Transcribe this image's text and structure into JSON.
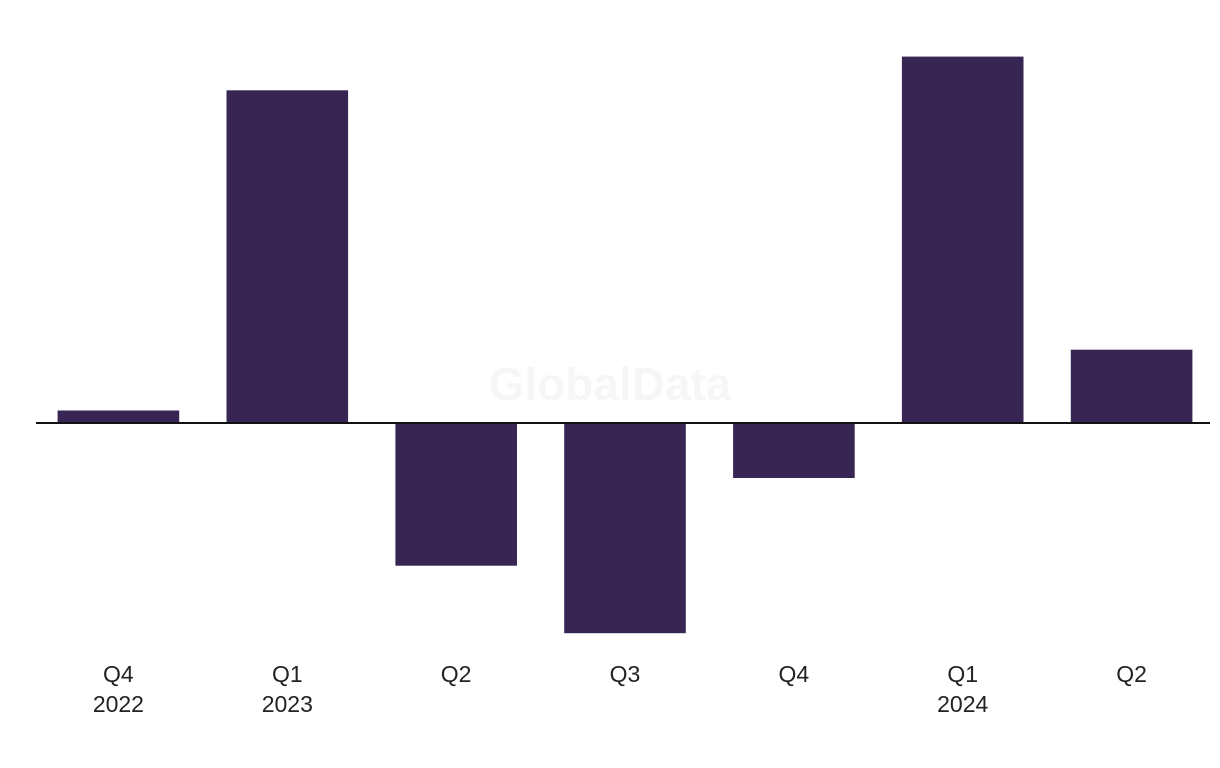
{
  "watermark": "GlobalData",
  "colors": {
    "bar": "#372554",
    "axis": "#111111",
    "text": "#222222"
  },
  "chart_data": {
    "type": "bar",
    "categories": [
      {
        "quarter": "Q4",
        "year": "2022"
      },
      {
        "quarter": "Q1",
        "year": "2023"
      },
      {
        "quarter": "Q2",
        "year": ""
      },
      {
        "quarter": "Q3",
        "year": ""
      },
      {
        "quarter": "Q4",
        "year": ""
      },
      {
        "quarter": "Q1",
        "year": "2024"
      },
      {
        "quarter": "Q2",
        "year": ""
      }
    ],
    "values": [
      1.3,
      34.5,
      -14.8,
      -21.8,
      -5.7,
      38.0,
      7.6
    ],
    "ylim": [
      -24,
      42
    ],
    "grid": false,
    "legend": "none"
  }
}
